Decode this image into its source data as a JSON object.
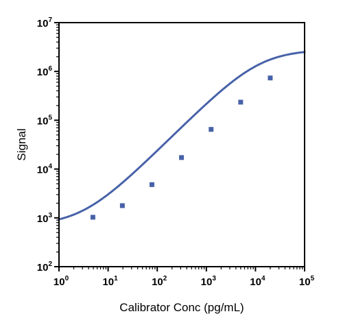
{
  "chart_data": {
    "type": "line",
    "title": "",
    "xlabel": "Calibrator Conc (pg/mL)",
    "ylabel": "Signal",
    "x_scale": "log",
    "y_scale": "log",
    "xlim": [
      1,
      100000
    ],
    "ylim": [
      100,
      10000000
    ],
    "grid": false,
    "legend": "none",
    "x_ticks": [
      {
        "base": "10",
        "exp": "0",
        "value": 1
      },
      {
        "base": "10",
        "exp": "1",
        "value": 10
      },
      {
        "base": "10",
        "exp": "2",
        "value": 100
      },
      {
        "base": "10",
        "exp": "3",
        "value": 1000
      },
      {
        "base": "10",
        "exp": "4",
        "value": 10000
      },
      {
        "base": "10",
        "exp": "5",
        "value": 100000
      }
    ],
    "y_ticks": [
      {
        "base": "10",
        "exp": "2",
        "value": 100
      },
      {
        "base": "10",
        "exp": "3",
        "value": 1000
      },
      {
        "base": "10",
        "exp": "4",
        "value": 10000
      },
      {
        "base": "10",
        "exp": "5",
        "value": 100000
      },
      {
        "base": "10",
        "exp": "6",
        "value": 1000000
      },
      {
        "base": "10",
        "exp": "7",
        "value": 10000000
      }
    ],
    "series": [
      {
        "color": "#4762a8",
        "marker": "square",
        "points": [
          {
            "x": 4.9,
            "y": 1030
          },
          {
            "x": 19.5,
            "y": 1780
          },
          {
            "x": 78,
            "y": 4800
          },
          {
            "x": 312,
            "y": 17200
          },
          {
            "x": 1250,
            "y": 65000
          },
          {
            "x": 5000,
            "y": 235000
          },
          {
            "x": 20000,
            "y": 735000
          }
        ],
        "fit": {
          "model": "4PL",
          "bottom": 700,
          "top": 2800000,
          "ec50": 12000,
          "hill": 1.0
        }
      }
    ]
  }
}
